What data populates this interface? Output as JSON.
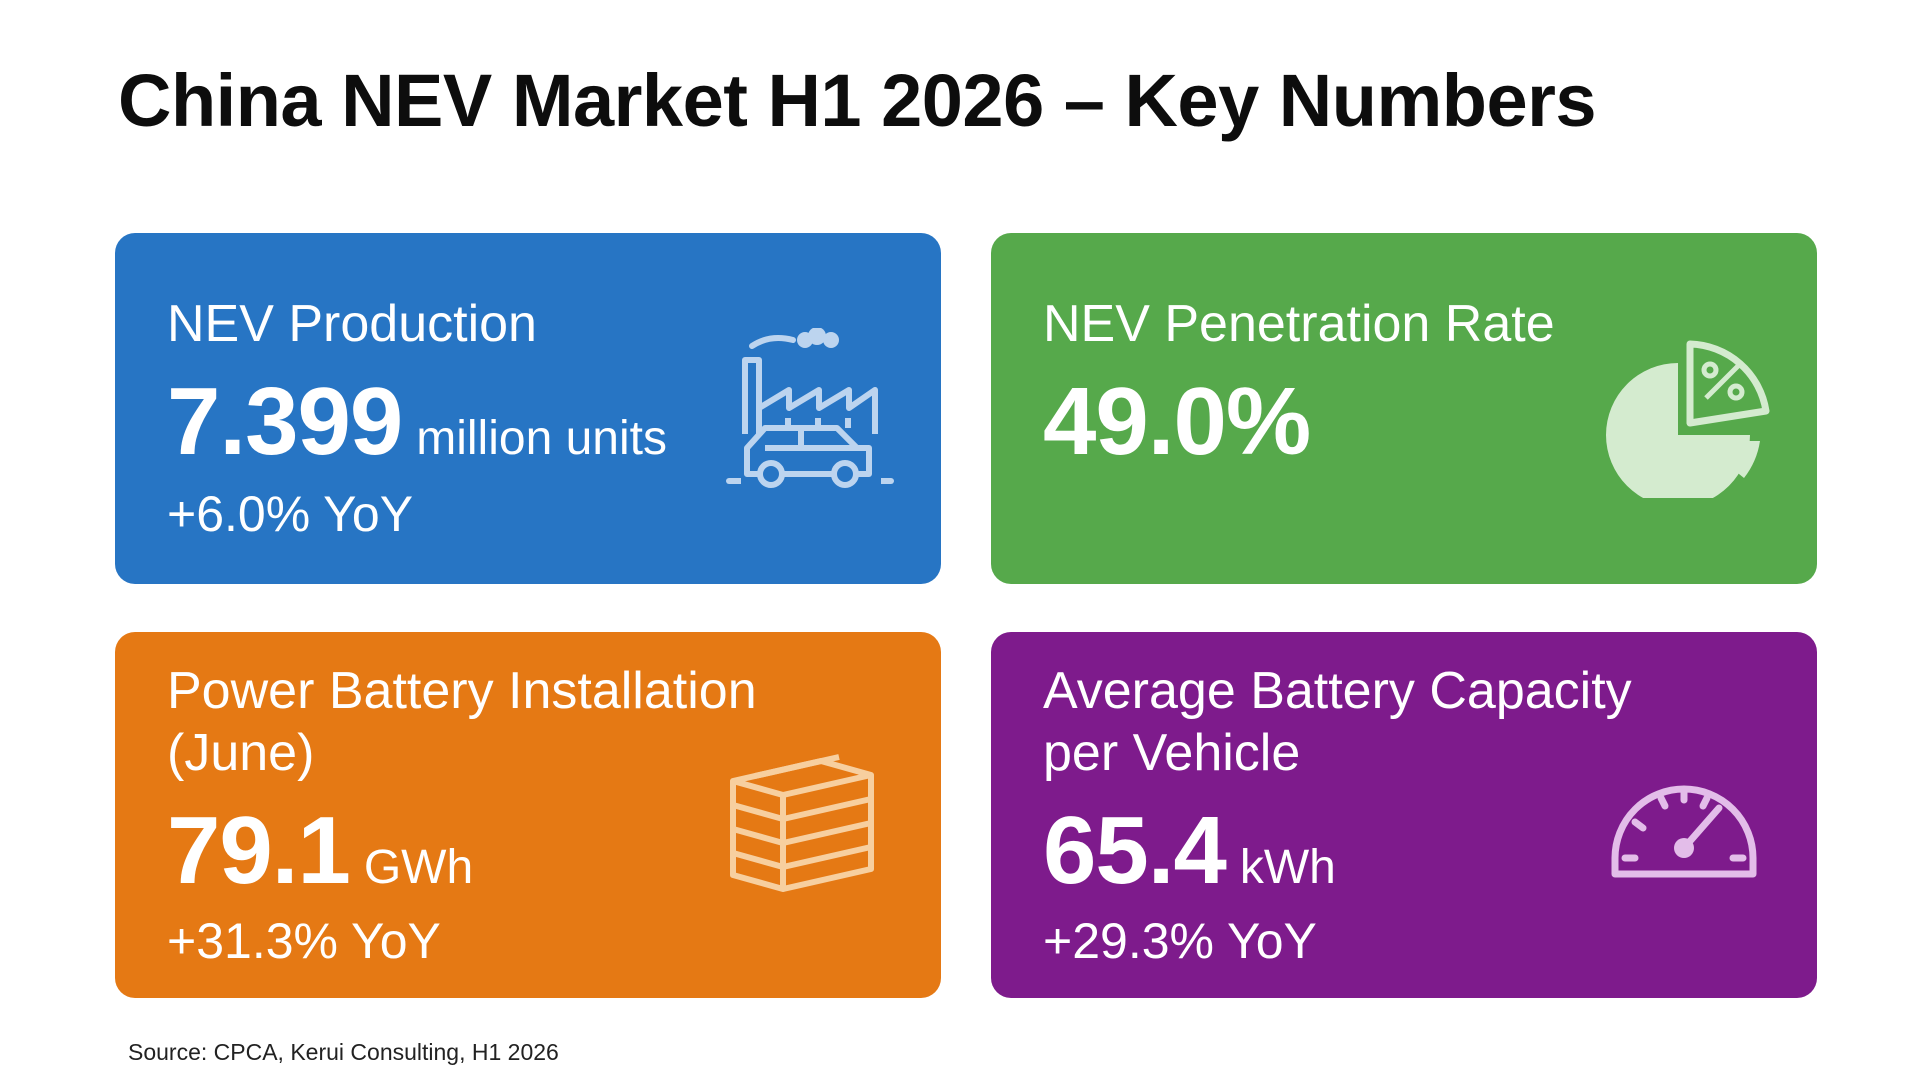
{
  "title": "China NEV Market H1 2026 – Key Numbers",
  "cards": {
    "production": {
      "label": "NEV Production",
      "value": "7.399",
      "unit": "million units",
      "change": "+6.0% YoY",
      "icon": "factory-car-icon",
      "color": "#2775c4"
    },
    "penetration": {
      "label": "NEV Penetration Rate",
      "value": "49.0%",
      "icon": "pie-chart-percent-icon",
      "color": "#56a94b"
    },
    "battery": {
      "label_line1": "Power Battery Installation",
      "label_line2": "(June)",
      "value": "79.1",
      "unit": "GWh",
      "change": "+31.3% YoY",
      "icon": "battery-stack-icon",
      "color": "#e57914"
    },
    "capacity": {
      "label_line1": "Average Battery Capacity",
      "label_line2": "per Vehicle",
      "value": "65.4",
      "unit": "kWh",
      "change": "+29.3% YoY",
      "icon": "gauge-icon",
      "color": "#7e1b8c"
    }
  },
  "source": "Source: CPCA, Kerui Consulting, H1 2026"
}
